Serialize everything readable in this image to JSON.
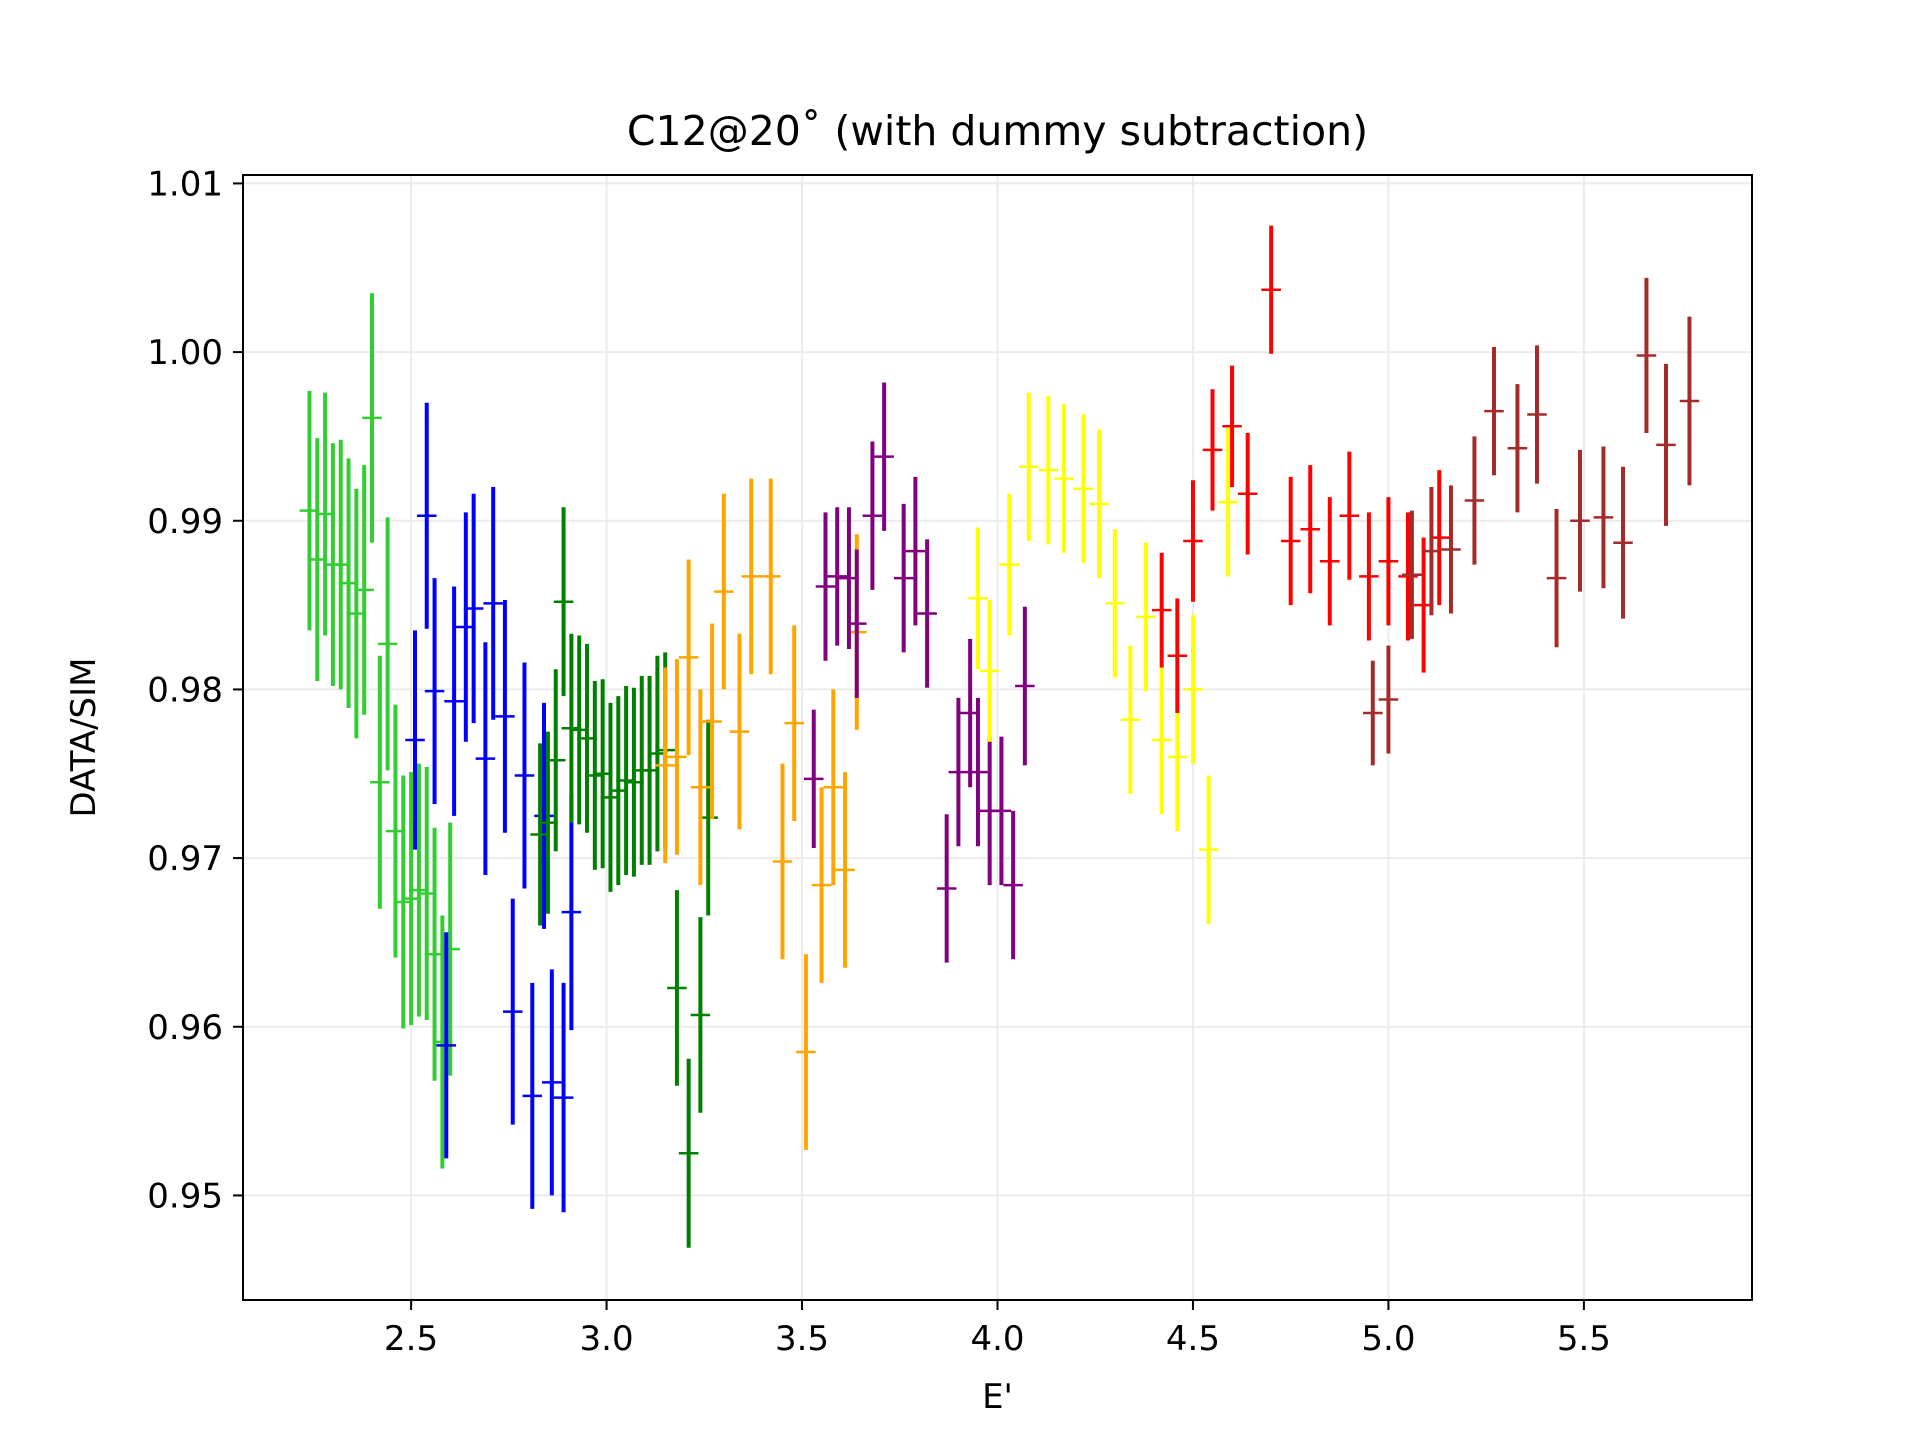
{
  "chart_data": {
    "type": "scatter",
    "title": "C12@20˚ (with dummy subtraction)",
    "xlabel": "E'",
    "ylabel": "DATA/SIM",
    "xlim": [
      2.07,
      5.93
    ],
    "ylim": [
      0.9438,
      1.0105
    ],
    "xticks": [
      2.5,
      3.0,
      3.5,
      4.0,
      4.5,
      5.0,
      5.5
    ],
    "xtick_labels": [
      "2.5",
      "3.0",
      "3.5",
      "4.0",
      "4.5",
      "5.0",
      "5.5"
    ],
    "yticks": [
      0.95,
      0.96,
      0.97,
      0.98,
      0.99,
      1.0,
      1.01
    ],
    "ytick_labels": [
      "0.95",
      "0.96",
      "0.97",
      "0.98",
      "0.99",
      "1.00",
      "1.01"
    ],
    "grid": true,
    "marker": "errorbar-cross",
    "x_halfwidth": 0.025,
    "series": [
      {
        "color": "#32cd32",
        "points": [
          {
            "x": 2.24,
            "y": 0.9906,
            "err": 0.0071
          },
          {
            "x": 2.26,
            "y": 0.9877,
            "err": 0.0072
          },
          {
            "x": 2.28,
            "y": 0.9904,
            "err": 0.0072
          },
          {
            "x": 2.3,
            "y": 0.9874,
            "err": 0.0072
          },
          {
            "x": 2.32,
            "y": 0.9874,
            "err": 0.0074
          },
          {
            "x": 2.34,
            "y": 0.9863,
            "err": 0.0074
          },
          {
            "x": 2.36,
            "y": 0.9845,
            "err": 0.0074
          },
          {
            "x": 2.38,
            "y": 0.9859,
            "err": 0.0074
          },
          {
            "x": 2.4,
            "y": 0.9961,
            "err": 0.0074
          },
          {
            "x": 2.42,
            "y": 0.9745,
            "err": 0.0075
          },
          {
            "x": 2.44,
            "y": 0.9827,
            "err": 0.0075
          },
          {
            "x": 2.46,
            "y": 0.9716,
            "err": 0.0075
          },
          {
            "x": 2.48,
            "y": 0.9674,
            "err": 0.0075
          },
          {
            "x": 2.5,
            "y": 0.9676,
            "err": 0.0075
          },
          {
            "x": 2.52,
            "y": 0.9681,
            "err": 0.0075
          },
          {
            "x": 2.54,
            "y": 0.9679,
            "err": 0.0075
          },
          {
            "x": 2.56,
            "y": 0.9643,
            "err": 0.0075
          },
          {
            "x": 2.58,
            "y": 0.9591,
            "err": 0.0075
          },
          {
            "x": 2.6,
            "y": 0.9646,
            "err": 0.0075
          }
        ]
      },
      {
        "color": "#0000ff",
        "points": [
          {
            "x": 2.51,
            "y": 0.977,
            "err": 0.0065
          },
          {
            "x": 2.54,
            "y": 0.9903,
            "err": 0.0067
          },
          {
            "x": 2.56,
            "y": 0.9799,
            "err": 0.0067
          },
          {
            "x": 2.59,
            "y": 0.9589,
            "err": 0.0067
          },
          {
            "x": 2.61,
            "y": 0.9793,
            "err": 0.0068
          },
          {
            "x": 2.64,
            "y": 0.9837,
            "err": 0.0068
          },
          {
            "x": 2.66,
            "y": 0.9848,
            "err": 0.0068
          },
          {
            "x": 2.69,
            "y": 0.9759,
            "err": 0.0069
          },
          {
            "x": 2.71,
            "y": 0.9851,
            "err": 0.0069
          },
          {
            "x": 2.74,
            "y": 0.9784,
            "err": 0.0069
          },
          {
            "x": 2.76,
            "y": 0.9609,
            "err": 0.0067
          },
          {
            "x": 2.79,
            "y": 0.9749,
            "err": 0.0067
          },
          {
            "x": 2.81,
            "y": 0.9559,
            "err": 0.0067
          },
          {
            "x": 2.84,
            "y": 0.9725,
            "err": 0.0067
          },
          {
            "x": 2.86,
            "y": 0.9567,
            "err": 0.0067
          },
          {
            "x": 2.89,
            "y": 0.9558,
            "err": 0.0068
          },
          {
            "x": 2.91,
            "y": 0.9668,
            "err": 0.007
          }
        ]
      },
      {
        "color": "#008000",
        "points": [
          {
            "x": 2.83,
            "y": 0.9714,
            "err": 0.0054
          },
          {
            "x": 2.85,
            "y": 0.9721,
            "err": 0.0054
          },
          {
            "x": 2.87,
            "y": 0.9758,
            "err": 0.0054
          },
          {
            "x": 2.89,
            "y": 0.9852,
            "err": 0.0056
          },
          {
            "x": 2.91,
            "y": 0.9777,
            "err": 0.0056
          },
          {
            "x": 2.93,
            "y": 0.9776,
            "err": 0.0056
          },
          {
            "x": 2.95,
            "y": 0.9771,
            "err": 0.0056
          },
          {
            "x": 2.97,
            "y": 0.9749,
            "err": 0.0056
          },
          {
            "x": 2.99,
            "y": 0.975,
            "err": 0.0056
          },
          {
            "x": 3.01,
            "y": 0.9736,
            "err": 0.0056
          },
          {
            "x": 3.03,
            "y": 0.974,
            "err": 0.0056
          },
          {
            "x": 3.05,
            "y": 0.9746,
            "err": 0.0056
          },
          {
            "x": 3.07,
            "y": 0.9745,
            "err": 0.0056
          },
          {
            "x": 3.09,
            "y": 0.9752,
            "err": 0.0056
          },
          {
            "x": 3.11,
            "y": 0.9752,
            "err": 0.0056
          },
          {
            "x": 3.13,
            "y": 0.9762,
            "err": 0.0058
          },
          {
            "x": 3.15,
            "y": 0.9764,
            "err": 0.0058
          },
          {
            "x": 3.18,
            "y": 0.9623,
            "err": 0.0058
          },
          {
            "x": 3.21,
            "y": 0.9525,
            "err": 0.0056
          },
          {
            "x": 3.24,
            "y": 0.9607,
            "err": 0.0058
          },
          {
            "x": 3.26,
            "y": 0.9724,
            "err": 0.0058
          }
        ]
      },
      {
        "color": "#ffa500",
        "points": [
          {
            "x": 3.15,
            "y": 0.9755,
            "err": 0.0058
          },
          {
            "x": 3.18,
            "y": 0.976,
            "err": 0.0058
          },
          {
            "x": 3.21,
            "y": 0.9819,
            "err": 0.0058
          },
          {
            "x": 3.24,
            "y": 0.9742,
            "err": 0.0058
          },
          {
            "x": 3.27,
            "y": 0.9781,
            "err": 0.0058
          },
          {
            "x": 3.3,
            "y": 0.9858,
            "err": 0.0058
          },
          {
            "x": 3.34,
            "y": 0.9775,
            "err": 0.0058
          },
          {
            "x": 3.37,
            "y": 0.9867,
            "err": 0.0058
          },
          {
            "x": 3.42,
            "y": 0.9867,
            "err": 0.0058
          },
          {
            "x": 3.45,
            "y": 0.9698,
            "err": 0.0058
          },
          {
            "x": 3.48,
            "y": 0.978,
            "err": 0.0058
          },
          {
            "x": 3.51,
            "y": 0.9585,
            "err": 0.0058
          },
          {
            "x": 3.55,
            "y": 0.9684,
            "err": 0.0058
          },
          {
            "x": 3.58,
            "y": 0.9742,
            "err": 0.0058
          },
          {
            "x": 3.61,
            "y": 0.9693,
            "err": 0.0058
          },
          {
            "x": 3.64,
            "y": 0.9834,
            "err": 0.0058
          }
        ]
      },
      {
        "color": "#800080",
        "points": [
          {
            "x": 3.53,
            "y": 0.9747,
            "err": 0.0041
          },
          {
            "x": 3.56,
            "y": 0.9861,
            "err": 0.0044
          },
          {
            "x": 3.59,
            "y": 0.9867,
            "err": 0.0041
          },
          {
            "x": 3.62,
            "y": 0.9866,
            "err": 0.0042
          },
          {
            "x": 3.64,
            "y": 0.9839,
            "err": 0.0044
          },
          {
            "x": 3.68,
            "y": 0.9903,
            "err": 0.0044
          },
          {
            "x": 3.71,
            "y": 0.9938,
            "err": 0.0044
          },
          {
            "x": 3.76,
            "y": 0.9866,
            "err": 0.0044
          },
          {
            "x": 3.79,
            "y": 0.9882,
            "err": 0.0044
          },
          {
            "x": 3.82,
            "y": 0.9845,
            "err": 0.0044
          },
          {
            "x": 3.87,
            "y": 0.9682,
            "err": 0.0044
          },
          {
            "x": 3.9,
            "y": 0.9751,
            "err": 0.0044
          },
          {
            "x": 3.93,
            "y": 0.9786,
            "err": 0.0044
          },
          {
            "x": 3.95,
            "y": 0.9751,
            "err": 0.0044
          },
          {
            "x": 3.98,
            "y": 0.9728,
            "err": 0.0044
          },
          {
            "x": 4.01,
            "y": 0.9728,
            "err": 0.0044
          },
          {
            "x": 4.04,
            "y": 0.9684,
            "err": 0.0044
          },
          {
            "x": 4.07,
            "y": 0.9802,
            "err": 0.0047
          }
        ]
      },
      {
        "color": "#ffff00",
        "points": [
          {
            "x": 3.95,
            "y": 0.9854,
            "err": 0.0042
          },
          {
            "x": 3.98,
            "y": 0.9811,
            "err": 0.0042
          },
          {
            "x": 4.03,
            "y": 0.9874,
            "err": 0.0042
          },
          {
            "x": 4.08,
            "y": 0.9932,
            "err": 0.0044
          },
          {
            "x": 4.13,
            "y": 0.993,
            "err": 0.0044
          },
          {
            "x": 4.17,
            "y": 0.9925,
            "err": 0.0044
          },
          {
            "x": 4.22,
            "y": 0.9919,
            "err": 0.0044
          },
          {
            "x": 4.26,
            "y": 0.991,
            "err": 0.0044
          },
          {
            "x": 4.3,
            "y": 0.9851,
            "err": 0.0044
          },
          {
            "x": 4.34,
            "y": 0.9782,
            "err": 0.0044
          },
          {
            "x": 4.38,
            "y": 0.9843,
            "err": 0.0044
          },
          {
            "x": 4.42,
            "y": 0.977,
            "err": 0.0044
          },
          {
            "x": 4.46,
            "y": 0.976,
            "err": 0.0044
          },
          {
            "x": 4.5,
            "y": 0.98,
            "err": 0.0044
          },
          {
            "x": 4.54,
            "y": 0.9705,
            "err": 0.0044
          },
          {
            "x": 4.59,
            "y": 0.9911,
            "err": 0.0044
          }
        ]
      },
      {
        "color": "#ff0000",
        "points": [
          {
            "x": 4.42,
            "y": 0.9847,
            "err": 0.0034
          },
          {
            "x": 4.46,
            "y": 0.982,
            "err": 0.0034
          },
          {
            "x": 4.5,
            "y": 0.9888,
            "err": 0.0036
          },
          {
            "x": 4.55,
            "y": 0.9942,
            "err": 0.0036
          },
          {
            "x": 4.6,
            "y": 0.9956,
            "err": 0.0036
          },
          {
            "x": 4.64,
            "y": 0.9916,
            "err": 0.0036
          },
          {
            "x": 4.7,
            "y": 1.0037,
            "err": 0.0038
          },
          {
            "x": 4.75,
            "y": 0.9888,
            "err": 0.0038
          },
          {
            "x": 4.8,
            "y": 0.9895,
            "err": 0.0038
          },
          {
            "x": 4.85,
            "y": 0.9876,
            "err": 0.0038
          },
          {
            "x": 4.9,
            "y": 0.9903,
            "err": 0.0038
          },
          {
            "x": 4.95,
            "y": 0.9867,
            "err": 0.0038
          },
          {
            "x": 5.0,
            "y": 0.9876,
            "err": 0.0038
          },
          {
            "x": 5.05,
            "y": 0.9867,
            "err": 0.0038
          },
          {
            "x": 5.09,
            "y": 0.985,
            "err": 0.004
          },
          {
            "x": 5.13,
            "y": 0.989,
            "err": 0.004
          }
        ]
      },
      {
        "color": "#a52a2a",
        "points": [
          {
            "x": 4.96,
            "y": 0.9786,
            "err": 0.0031
          },
          {
            "x": 5.0,
            "y": 0.9794,
            "err": 0.0032
          },
          {
            "x": 5.06,
            "y": 0.9868,
            "err": 0.0038
          },
          {
            "x": 5.11,
            "y": 0.9882,
            "err": 0.0038
          },
          {
            "x": 5.16,
            "y": 0.9883,
            "err": 0.0038
          },
          {
            "x": 5.22,
            "y": 0.9912,
            "err": 0.0038
          },
          {
            "x": 5.27,
            "y": 0.9965,
            "err": 0.0038
          },
          {
            "x": 5.33,
            "y": 0.9943,
            "err": 0.0038
          },
          {
            "x": 5.38,
            "y": 0.9963,
            "err": 0.0041
          },
          {
            "x": 5.43,
            "y": 0.9866,
            "err": 0.0041
          },
          {
            "x": 5.49,
            "y": 0.99,
            "err": 0.0042
          },
          {
            "x": 5.55,
            "y": 0.9902,
            "err": 0.0042
          },
          {
            "x": 5.6,
            "y": 0.9887,
            "err": 0.0045
          },
          {
            "x": 5.66,
            "y": 0.9998,
            "err": 0.0046
          },
          {
            "x": 5.71,
            "y": 0.9945,
            "err": 0.0048
          },
          {
            "x": 5.77,
            "y": 0.9971,
            "err": 0.005
          }
        ]
      }
    ]
  }
}
